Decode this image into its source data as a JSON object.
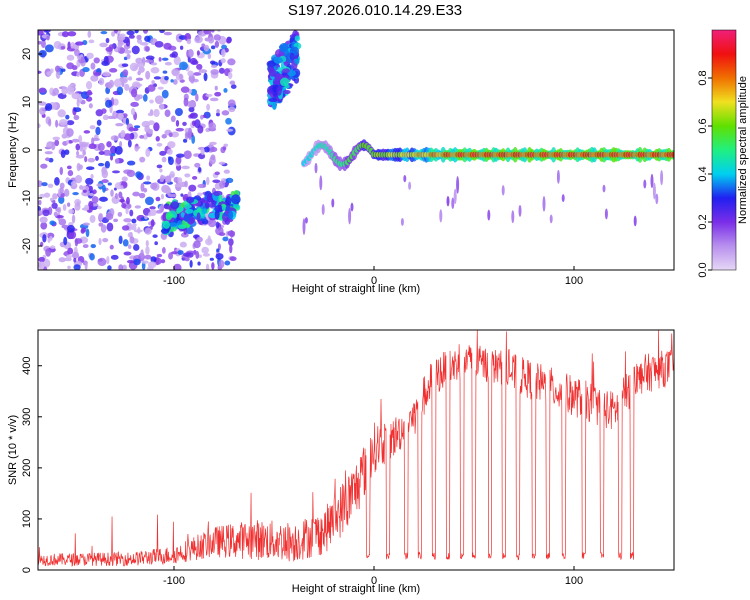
{
  "title": "S197.2026.010.14.29.E33",
  "chart_data": [
    {
      "type": "heatmap",
      "xlabel": "Height of straight line (km)",
      "ylabel": "Frequency (Hz)",
      "xlim": [
        -168,
        150
      ],
      "ylim": [
        -25,
        25
      ],
      "x_ticks": [
        -100,
        0,
        100
      ],
      "y_ticks": [
        -20,
        -10,
        0,
        10,
        20
      ],
      "grid": false,
      "colorbar": {
        "label": "Normalized spectral amplitude",
        "range": [
          0,
          1
        ],
        "ticks": [
          0.0,
          0.2,
          0.4,
          0.6,
          0.8
        ],
        "colors": [
          "#e6d8f6",
          "#b890ee",
          "#7a2ee8",
          "#2020f0",
          "#00d0f0",
          "#20f080",
          "#60e000",
          "#f0e020",
          "#f07000",
          "#f01010",
          "#f0207a"
        ]
      },
      "features": [
        {
          "name": "scattered noise",
          "x_range": [
            -168,
            -70
          ],
          "y_range": [
            -25,
            25
          ],
          "amplitude_range": [
            0.05,
            0.35
          ]
        },
        {
          "name": "low-frequency band",
          "x_range": [
            -105,
            -68
          ],
          "y_range": [
            -17,
            -8
          ],
          "amplitude_range": [
            0.2,
            0.55
          ]
        },
        {
          "name": "upper feature",
          "x_range": [
            -52,
            -38
          ],
          "y_range": [
            8,
            25
          ],
          "amplitude_range": [
            0.2,
            0.45
          ]
        },
        {
          "name": "main line",
          "x_range": [
            -35,
            150
          ],
          "y": -1,
          "amplitude_range": [
            0.4,
            0.95
          ]
        }
      ]
    },
    {
      "type": "line",
      "xlabel": "Height of straight line (km)",
      "ylabel": "SNR (10 * v/v)",
      "xlim": [
        -168,
        150
      ],
      "ylim": [
        0,
        470
      ],
      "x_ticks": [
        -100,
        0,
        100
      ],
      "y_ticks": [
        0,
        100,
        200,
        300,
        400
      ],
      "grid": false,
      "color": "#f03030",
      "profile": [
        {
          "x": -168,
          "level": 20,
          "noise": 12
        },
        {
          "x": -120,
          "level": 22,
          "noise": 14
        },
        {
          "x": -100,
          "level": 30,
          "noise": 18
        },
        {
          "x": -80,
          "level": 55,
          "noise": 30
        },
        {
          "x": -60,
          "level": 60,
          "noise": 40
        },
        {
          "x": -40,
          "level": 55,
          "noise": 40
        },
        {
          "x": -25,
          "level": 75,
          "noise": 45
        },
        {
          "x": -10,
          "level": 150,
          "noise": 60
        },
        {
          "x": 0,
          "level": 240,
          "noise": 50
        },
        {
          "x": 10,
          "level": 260,
          "noise": 40
        },
        {
          "x": 20,
          "level": 300,
          "noise": 40
        },
        {
          "x": 30,
          "level": 380,
          "noise": 40
        },
        {
          "x": 45,
          "level": 410,
          "noise": 35
        },
        {
          "x": 60,
          "level": 400,
          "noise": 35
        },
        {
          "x": 80,
          "level": 370,
          "noise": 40
        },
        {
          "x": 100,
          "level": 340,
          "noise": 40
        },
        {
          "x": 120,
          "level": 310,
          "noise": 40
        },
        {
          "x": 132,
          "level": 380,
          "noise": 40
        },
        {
          "x": 150,
          "level": 400,
          "noise": 35
        }
      ],
      "dropouts": [
        -3,
        7,
        16,
        23,
        30,
        37,
        44,
        50,
        58,
        65,
        72,
        80,
        87,
        95,
        105,
        114,
        123,
        129
      ],
      "dropout_level": 20
    }
  ]
}
